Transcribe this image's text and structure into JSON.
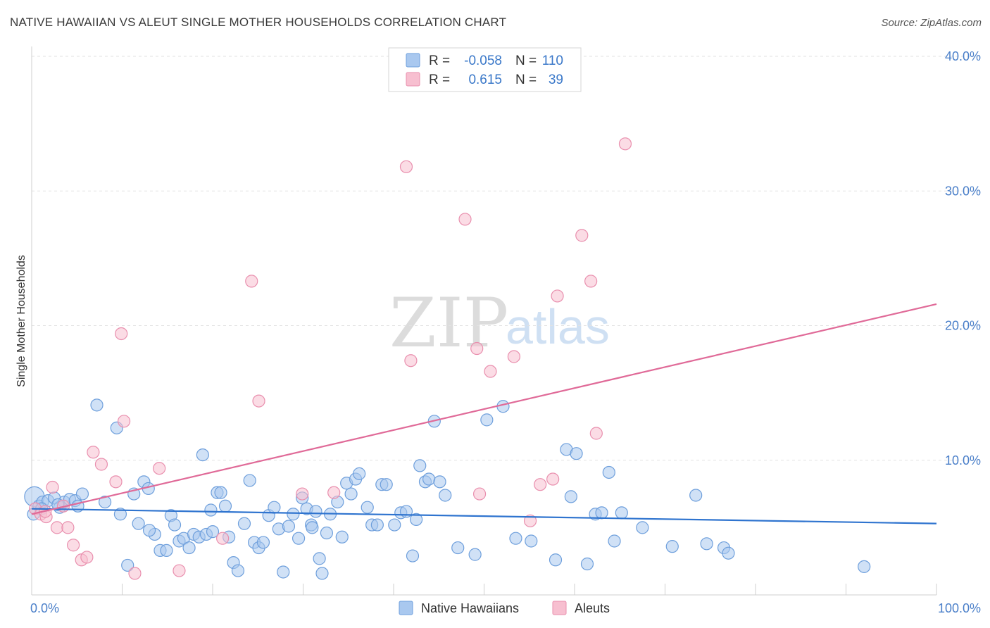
{
  "header": {
    "title": "NATIVE HAWAIIAN VS ALEUT SINGLE MOTHER HOUSEHOLDS CORRELATION CHART",
    "source": "Source: ZipAtlas.com"
  },
  "watermark": {
    "zip": "ZIP",
    "atlas": "atlas"
  },
  "legend_box": {
    "rows": [
      {
        "r_label": "R =",
        "r_value": "-0.058",
        "n_label": "N =",
        "n_value": "110",
        "color": "#a9c8ef",
        "stroke": "#6e9fdc"
      },
      {
        "r_label": "R =",
        "r_value": "0.615",
        "n_label": "N =",
        "n_value": "39",
        "color": "#f7bfd0",
        "stroke": "#e98fae"
      }
    ]
  },
  "bottom_legend": [
    {
      "label": "Native Hawaiians",
      "color": "#a9c8ef",
      "stroke": "#6e9fdc"
    },
    {
      "label": "Aleuts",
      "color": "#f7bfd0",
      "stroke": "#e98fae"
    }
  ],
  "chart_data": {
    "type": "scatter",
    "title": "NATIVE HAWAIIAN VS ALEUT SINGLE MOTHER HOUSEHOLDS CORRELATION CHART",
    "xlabel": "",
    "ylabel": "Single Mother Households",
    "xlim": [
      0,
      100
    ],
    "ylim": [
      0,
      40
    ],
    "x_tick_labels": [
      "0.0%",
      "100.0%"
    ],
    "y_ticks": [
      10,
      20,
      30,
      40
    ],
    "y_tick_labels": [
      "10.0%",
      "20.0%",
      "30.0%",
      "40.0%"
    ],
    "grid": true,
    "legend_position": "top-center",
    "series": [
      {
        "name": "Native Hawaiians",
        "color": "#6e9fdc",
        "fill": "#a9c8ef",
        "trend": {
          "x": [
            0,
            100
          ],
          "y": [
            6.4,
            5.3
          ]
        },
        "points": [
          [
            0.3,
            7.3
          ],
          [
            0.8,
            6.6
          ],
          [
            1.2,
            6.9
          ],
          [
            1.8,
            7.0
          ],
          [
            2.5,
            7.2
          ],
          [
            3.1,
            6.5
          ],
          [
            3.6,
            6.9
          ],
          [
            4.2,
            7.1
          ],
          [
            4.8,
            7.0
          ],
          [
            5.6,
            7.5
          ],
          [
            7.2,
            14.1
          ],
          [
            8.1,
            6.9
          ],
          [
            9.4,
            12.4
          ],
          [
            9.8,
            6.0
          ],
          [
            10.6,
            2.2
          ],
          [
            11.3,
            7.5
          ],
          [
            11.8,
            5.3
          ],
          [
            12.4,
            8.4
          ],
          [
            12.9,
            7.9
          ],
          [
            13.6,
            4.5
          ],
          [
            14.2,
            3.3
          ],
          [
            14.9,
            3.3
          ],
          [
            15.4,
            5.9
          ],
          [
            15.8,
            5.2
          ],
          [
            16.3,
            4.0
          ],
          [
            16.8,
            4.2
          ],
          [
            17.4,
            3.5
          ],
          [
            17.9,
            4.5
          ],
          [
            18.5,
            4.3
          ],
          [
            18.9,
            10.4
          ],
          [
            19.3,
            4.5
          ],
          [
            19.8,
            6.3
          ],
          [
            20.5,
            7.6
          ],
          [
            20.9,
            7.6
          ],
          [
            21.4,
            6.6
          ],
          [
            21.8,
            4.3
          ],
          [
            22.3,
            2.4
          ],
          [
            22.8,
            1.8
          ],
          [
            23.5,
            5.3
          ],
          [
            24.1,
            8.5
          ],
          [
            24.6,
            3.9
          ],
          [
            25.1,
            3.5
          ],
          [
            25.6,
            3.9
          ],
          [
            26.2,
            5.9
          ],
          [
            26.8,
            6.5
          ],
          [
            27.3,
            4.9
          ],
          [
            27.8,
            1.7
          ],
          [
            28.4,
            5.1
          ],
          [
            28.9,
            6.0
          ],
          [
            29.5,
            4.2
          ],
          [
            29.9,
            7.2
          ],
          [
            30.4,
            6.4
          ],
          [
            30.9,
            5.2
          ],
          [
            31.4,
            6.2
          ],
          [
            31.8,
            2.7
          ],
          [
            32.1,
            1.6
          ],
          [
            32.6,
            4.6
          ],
          [
            33.0,
            6.0
          ],
          [
            33.8,
            6.9
          ],
          [
            34.3,
            4.3
          ],
          [
            34.8,
            8.3
          ],
          [
            35.3,
            7.5
          ],
          [
            35.8,
            8.6
          ],
          [
            36.2,
            9.0
          ],
          [
            37.1,
            6.5
          ],
          [
            37.6,
            5.2
          ],
          [
            38.2,
            5.2
          ],
          [
            38.7,
            8.2
          ],
          [
            39.2,
            8.2
          ],
          [
            40.1,
            5.2
          ],
          [
            40.8,
            6.1
          ],
          [
            41.4,
            6.2
          ],
          [
            42.1,
            2.9
          ],
          [
            42.5,
            5.6
          ],
          [
            42.9,
            9.6
          ],
          [
            43.5,
            8.4
          ],
          [
            43.9,
            8.6
          ],
          [
            44.5,
            12.9
          ],
          [
            45.1,
            8.4
          ],
          [
            45.7,
            7.4
          ],
          [
            47.1,
            3.5
          ],
          [
            49.0,
            3.0
          ],
          [
            50.3,
            13.0
          ],
          [
            52.1,
            14.0
          ],
          [
            53.5,
            4.2
          ],
          [
            55.2,
            4.0
          ],
          [
            57.9,
            2.6
          ],
          [
            59.1,
            10.8
          ],
          [
            59.6,
            7.3
          ],
          [
            60.2,
            10.5
          ],
          [
            61.4,
            2.3
          ],
          [
            62.3,
            6.0
          ],
          [
            63.0,
            6.1
          ],
          [
            63.8,
            9.1
          ],
          [
            64.4,
            4.0
          ],
          [
            65.2,
            6.1
          ],
          [
            67.5,
            5.0
          ],
          [
            70.8,
            3.6
          ],
          [
            73.4,
            7.4
          ],
          [
            74.6,
            3.8
          ],
          [
            76.5,
            3.5
          ],
          [
            77.0,
            3.1
          ],
          [
            92.0,
            2.1
          ],
          [
            0.2,
            6.0
          ],
          [
            1.1,
            6.4
          ],
          [
            2.9,
            6.7
          ],
          [
            5.1,
            6.6
          ],
          [
            13.0,
            4.8
          ],
          [
            20.0,
            4.7
          ],
          [
            31.0,
            5.0
          ]
        ]
      },
      {
        "name": "Aleuts",
        "color": "#e98fae",
        "fill": "#f7bfd0",
        "trend": {
          "x": [
            0,
            100
          ],
          "y": [
            6.0,
            21.6
          ]
        },
        "points": [
          [
            0.4,
            6.4
          ],
          [
            1.0,
            6.0
          ],
          [
            1.6,
            5.8
          ],
          [
            2.3,
            8.0
          ],
          [
            2.8,
            5.0
          ],
          [
            3.5,
            6.6
          ],
          [
            4.0,
            5.0
          ],
          [
            4.6,
            3.7
          ],
          [
            5.5,
            2.6
          ],
          [
            6.1,
            2.8
          ],
          [
            6.8,
            10.6
          ],
          [
            7.7,
            9.7
          ],
          [
            9.3,
            8.4
          ],
          [
            9.9,
            19.4
          ],
          [
            10.2,
            12.9
          ],
          [
            11.4,
            1.6
          ],
          [
            14.1,
            9.4
          ],
          [
            16.3,
            1.8
          ],
          [
            21.1,
            4.2
          ],
          [
            24.3,
            23.3
          ],
          [
            25.1,
            14.4
          ],
          [
            29.9,
            7.5
          ],
          [
            33.4,
            7.6
          ],
          [
            41.4,
            31.8
          ],
          [
            41.9,
            17.4
          ],
          [
            47.9,
            27.9
          ],
          [
            49.2,
            18.3
          ],
          [
            49.5,
            7.5
          ],
          [
            50.7,
            16.6
          ],
          [
            53.3,
            17.7
          ],
          [
            55.1,
            5.5
          ],
          [
            56.2,
            8.2
          ],
          [
            57.6,
            8.6
          ],
          [
            58.1,
            22.2
          ],
          [
            60.8,
            26.7
          ],
          [
            61.8,
            23.3
          ],
          [
            62.4,
            12.0
          ],
          [
            65.6,
            33.5
          ],
          [
            1.5,
            6.2
          ]
        ]
      }
    ]
  }
}
